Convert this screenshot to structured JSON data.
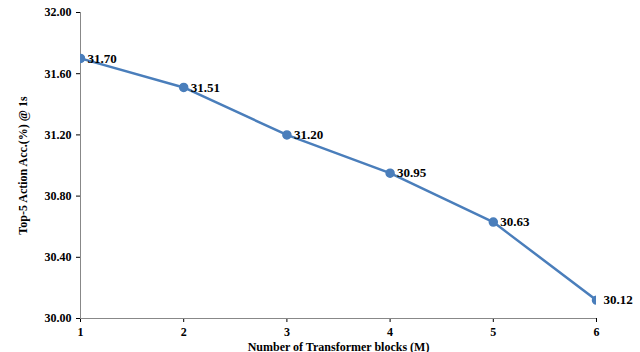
{
  "chart_data": {
    "type": "line",
    "x_label": "Number of Transformer blocks (M)",
    "y_label": "Top-5 Action Acc.(%) @ 1s",
    "x": [
      1,
      2,
      3,
      4,
      5,
      6
    ],
    "values": [
      31.7,
      31.51,
      31.2,
      30.95,
      30.63,
      30.12
    ],
    "value_labels": [
      "31.70",
      "31.51",
      "31.20",
      "30.95",
      "30.63",
      "30.12"
    ],
    "data_labels": true,
    "color": "#4a7ebb",
    "marker": "circle",
    "line_style": "solid",
    "grid": false,
    "xlim": [
      1,
      6
    ],
    "xticks": [
      1,
      2,
      3,
      4,
      5,
      6
    ],
    "ylim": [
      30,
      32
    ],
    "yticks": [
      {
        "value": 30,
        "label": "30.00"
      },
      {
        "value": 30.4,
        "label": "30.40"
      },
      {
        "value": 30.8,
        "label": "30.80"
      },
      {
        "value": 31.2,
        "label": "31.20"
      },
      {
        "value": 31.6,
        "label": "31.60"
      },
      {
        "value": 32,
        "label": "32.00"
      }
    ]
  }
}
